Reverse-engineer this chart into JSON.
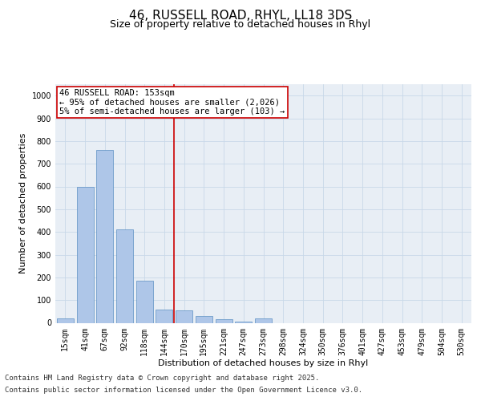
{
  "title_line1": "46, RUSSELL ROAD, RHYL, LL18 3DS",
  "title_line2": "Size of property relative to detached houses in Rhyl",
  "xlabel": "Distribution of detached houses by size in Rhyl",
  "ylabel": "Number of detached properties",
  "categories": [
    "15sqm",
    "41sqm",
    "67sqm",
    "92sqm",
    "118sqm",
    "144sqm",
    "170sqm",
    "195sqm",
    "221sqm",
    "247sqm",
    "273sqm",
    "298sqm",
    "324sqm",
    "350sqm",
    "376sqm",
    "401sqm",
    "427sqm",
    "453sqm",
    "479sqm",
    "504sqm",
    "530sqm"
  ],
  "values": [
    20,
    600,
    760,
    410,
    185,
    60,
    55,
    30,
    15,
    5,
    20,
    0,
    0,
    0,
    0,
    0,
    0,
    0,
    0,
    0,
    0
  ],
  "bar_color": "#aec6e8",
  "bar_edge_color": "#5a8fc2",
  "vline_x": 5.5,
  "vline_color": "#cc0000",
  "annotation_line1": "46 RUSSELL ROAD: 153sqm",
  "annotation_line2": "← 95% of detached houses are smaller (2,026)",
  "annotation_line3": "5% of semi-detached houses are larger (103) →",
  "annotation_box_color": "#cc0000",
  "ylim": [
    0,
    1050
  ],
  "yticks": [
    0,
    100,
    200,
    300,
    400,
    500,
    600,
    700,
    800,
    900,
    1000
  ],
  "grid_color": "#c8d8e8",
  "background_color": "#e8eef5",
  "footer_line1": "Contains HM Land Registry data © Crown copyright and database right 2025.",
  "footer_line2": "Contains public sector information licensed under the Open Government Licence v3.0.",
  "title_fontsize": 11,
  "subtitle_fontsize": 9,
  "axis_label_fontsize": 8,
  "tick_fontsize": 7,
  "annotation_fontsize": 7.5,
  "footer_fontsize": 6.5
}
